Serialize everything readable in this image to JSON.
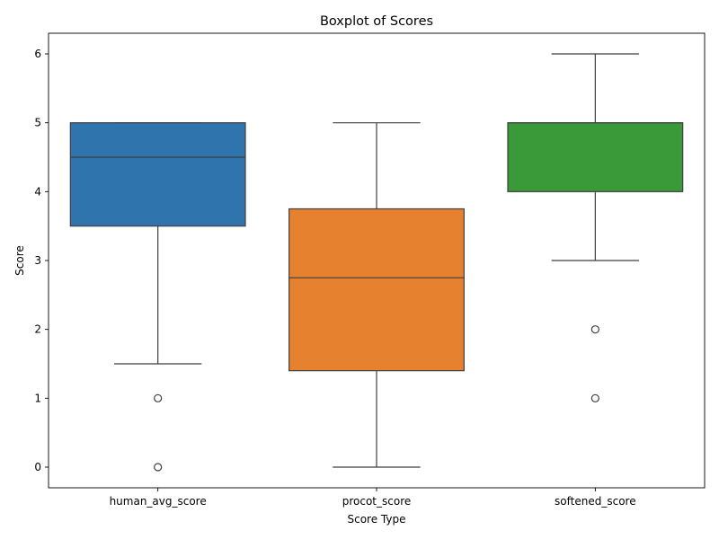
{
  "chart_data": {
    "type": "boxplot",
    "title": "Boxplot of Scores",
    "xlabel": "Score Type",
    "ylabel": "Score",
    "ylim": [
      -0.3,
      6.3
    ],
    "yticks": [
      0,
      1,
      2,
      3,
      4,
      5,
      6
    ],
    "ytick_labels": [
      "0",
      "1",
      "2",
      "3",
      "4",
      "5",
      "6"
    ],
    "grid": false,
    "categories": [
      "human_avg_score",
      "procot_score",
      "softened_score"
    ],
    "series": [
      {
        "category": "human_avg_score",
        "color": "#2f74ad",
        "whisker_low": 1.5,
        "q1": 3.5,
        "median": 4.5,
        "q3": 5.0,
        "whisker_high": 5.0,
        "outliers": [
          0,
          1
        ]
      },
      {
        "category": "procot_score",
        "color": "#e6812f",
        "whisker_low": 0,
        "q1": 1.4,
        "median": 2.75,
        "q3": 3.75,
        "whisker_high": 5.0,
        "outliers": []
      },
      {
        "category": "softened_score",
        "color": "#3a9a3a",
        "whisker_low": 3.0,
        "q1": 4.0,
        "median": 5.0,
        "q3": 5.0,
        "whisker_high": 6.0,
        "outliers": [
          1,
          2
        ]
      }
    ]
  }
}
